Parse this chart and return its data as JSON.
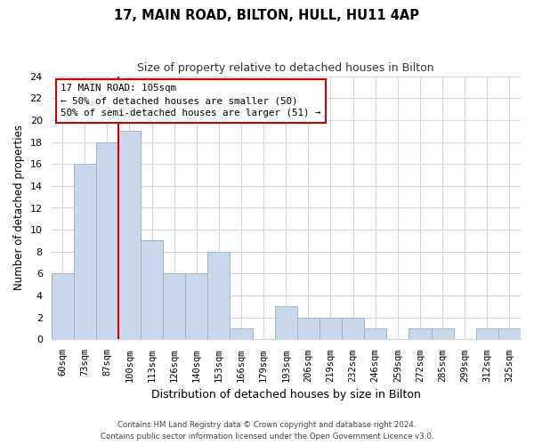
{
  "title": "17, MAIN ROAD, BILTON, HULL, HU11 4AP",
  "subtitle": "Size of property relative to detached houses in Bilton",
  "xlabel": "Distribution of detached houses by size in Bilton",
  "ylabel": "Number of detached properties",
  "bar_labels": [
    "60sqm",
    "73sqm",
    "87sqm",
    "100sqm",
    "113sqm",
    "126sqm",
    "140sqm",
    "153sqm",
    "166sqm",
    "179sqm",
    "193sqm",
    "206sqm",
    "219sqm",
    "232sqm",
    "246sqm",
    "259sqm",
    "272sqm",
    "285sqm",
    "299sqm",
    "312sqm",
    "325sqm"
  ],
  "bar_values": [
    6,
    16,
    18,
    19,
    9,
    6,
    6,
    8,
    1,
    0,
    3,
    2,
    2,
    2,
    1,
    0,
    1,
    1,
    0,
    1,
    1
  ],
  "bar_color": "#c8d8ea",
  "bar_edgecolor": "#9ab4cc",
  "vline_color": "#cc0000",
  "annotation_title": "17 MAIN ROAD: 105sqm",
  "annotation_line1": "← 50% of detached houses are smaller (50)",
  "annotation_line2": "50% of semi-detached houses are larger (51) →",
  "annotation_box_color": "#ffffff",
  "annotation_box_edgecolor": "#cc0000",
  "ylim": [
    0,
    24
  ],
  "yticks": [
    0,
    2,
    4,
    6,
    8,
    10,
    12,
    14,
    16,
    18,
    20,
    22,
    24
  ],
  "footer1": "Contains HM Land Registry data © Crown copyright and database right 2024.",
  "footer2": "Contains public sector information licensed under the Open Government Licence v3.0.",
  "background_color": "#ffffff",
  "grid_color": "#ccd8e4"
}
